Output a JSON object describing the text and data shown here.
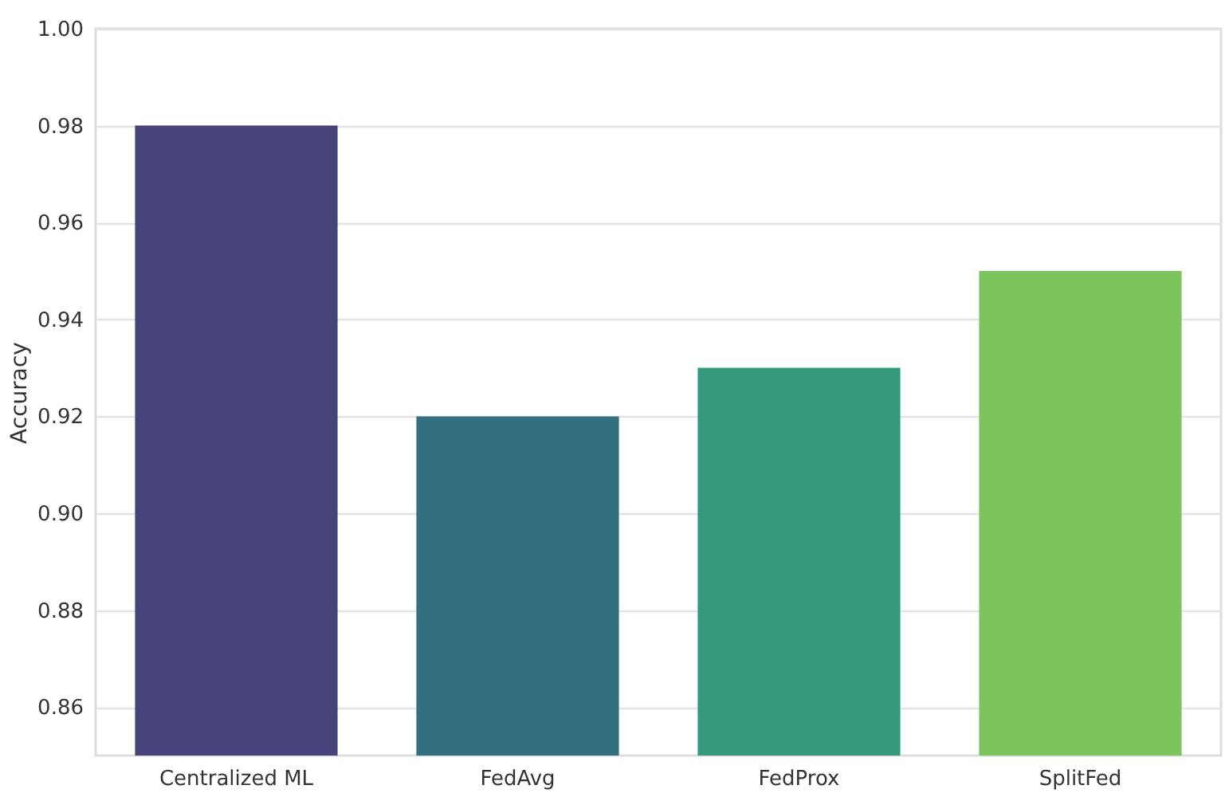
{
  "chart_data": {
    "type": "bar",
    "ylabel": "Accuracy",
    "categories": [
      "Centralized ML",
      "FedAvg",
      "FedProx",
      "SplitFed"
    ],
    "values": [
      0.98,
      0.92,
      0.93,
      0.95
    ],
    "colors": [
      "#46447b",
      "#33707f",
      "#35987d",
      "#7cc45c"
    ],
    "ylim": [
      0.85,
      1.0
    ],
    "yticks": [
      0.86,
      0.88,
      {
        "value": 0.9,
        "label": "0.90"
      },
      0.92,
      0.94,
      0.96,
      0.98,
      {
        "value": 1.0,
        "label": "1.00"
      }
    ],
    "grid": "y"
  }
}
